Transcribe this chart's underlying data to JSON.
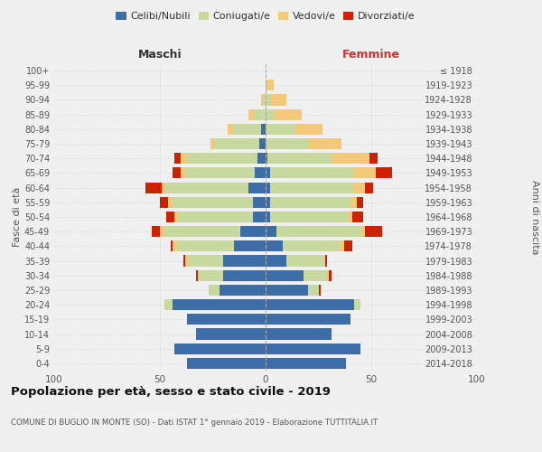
{
  "age_groups": [
    "100+",
    "95-99",
    "90-94",
    "85-89",
    "80-84",
    "75-79",
    "70-74",
    "65-69",
    "60-64",
    "55-59",
    "50-54",
    "45-49",
    "40-44",
    "35-39",
    "30-34",
    "25-29",
    "20-24",
    "15-19",
    "10-14",
    "5-9",
    "0-4"
  ],
  "birth_years": [
    "≤ 1918",
    "1919-1923",
    "1924-1928",
    "1929-1933",
    "1934-1938",
    "1939-1943",
    "1944-1948",
    "1949-1953",
    "1954-1958",
    "1959-1963",
    "1964-1968",
    "1969-1973",
    "1974-1978",
    "1979-1983",
    "1984-1988",
    "1989-1993",
    "1994-1998",
    "1999-2003",
    "2004-2008",
    "2009-2013",
    "2014-2018"
  ],
  "maschi": {
    "celibi": [
      0,
      0,
      0,
      0,
      2,
      3,
      4,
      5,
      8,
      6,
      6,
      12,
      15,
      20,
      20,
      22,
      44,
      37,
      33,
      43,
      37
    ],
    "coniugati": [
      0,
      0,
      1,
      5,
      14,
      21,
      33,
      33,
      39,
      38,
      35,
      36,
      27,
      17,
      12,
      5,
      4,
      0,
      0,
      0,
      0
    ],
    "vedovi": [
      0,
      0,
      1,
      3,
      2,
      2,
      3,
      2,
      2,
      2,
      2,
      2,
      2,
      1,
      0,
      0,
      0,
      0,
      0,
      0,
      0
    ],
    "divorziati": [
      0,
      0,
      0,
      0,
      0,
      0,
      3,
      4,
      8,
      4,
      4,
      4,
      1,
      1,
      1,
      0,
      0,
      0,
      0,
      0,
      0
    ]
  },
  "femmine": {
    "nubili": [
      0,
      0,
      0,
      0,
      0,
      0,
      1,
      2,
      2,
      2,
      2,
      5,
      8,
      10,
      18,
      20,
      42,
      40,
      31,
      45,
      38
    ],
    "coniugate": [
      0,
      1,
      2,
      4,
      14,
      20,
      30,
      40,
      40,
      38,
      37,
      40,
      27,
      18,
      12,
      5,
      3,
      0,
      0,
      0,
      0
    ],
    "vedove": [
      0,
      3,
      8,
      13,
      13,
      16,
      18,
      10,
      5,
      3,
      2,
      2,
      2,
      0,
      0,
      0,
      0,
      0,
      0,
      0,
      0
    ],
    "divorziate": [
      0,
      0,
      0,
      0,
      0,
      0,
      4,
      8,
      4,
      3,
      5,
      8,
      4,
      1,
      1,
      1,
      0,
      0,
      0,
      0,
      0
    ]
  },
  "colors": {
    "celibi_nubili": "#3d6da8",
    "coniugati": "#c8d9a0",
    "vedovi": "#f5c97a",
    "divorziati": "#cc2200"
  },
  "xlim": 100,
  "title": "Popolazione per età, sesso e stato civile - 2019",
  "subtitle": "COMUNE DI BUGLIO IN MONTE (SO) - Dati ISTAT 1° gennaio 2019 - Elaborazione TUTTITALIA.IT",
  "xlabel_left": "Maschi",
  "xlabel_right": "Femmine",
  "ylabel_left": "Fasce di età",
  "ylabel_right": "Anni di nascita",
  "background_color": "#f0f0f0",
  "legend_labels": [
    "Celibi/Nubili",
    "Coniugati/e",
    "Vedovi/e",
    "Divorziati/e"
  ]
}
